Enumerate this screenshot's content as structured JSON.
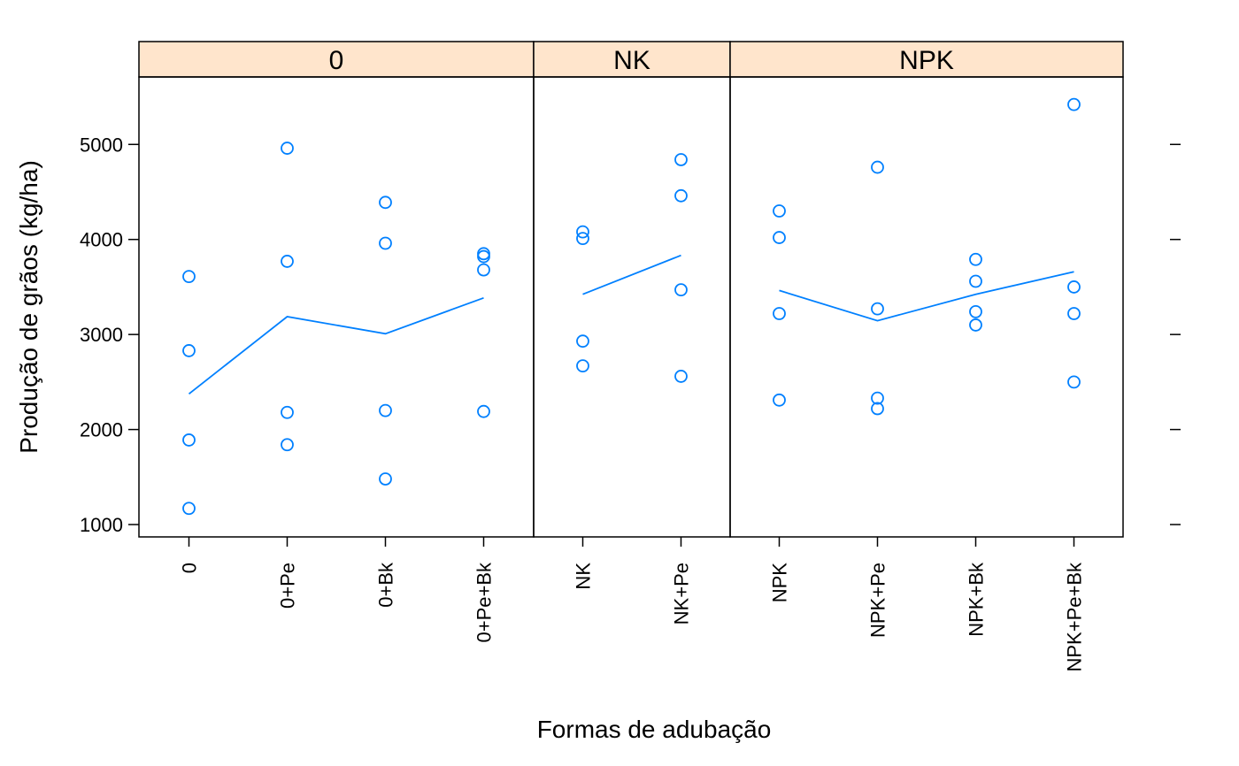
{
  "chart_data": {
    "type": "scatter",
    "xlabel": "Formas de adubação",
    "ylabel": "Produção de grãos (kg/ha)",
    "ylim": [
      870,
      5710
    ],
    "yticks": [
      1000,
      2000,
      3000,
      4000,
      5000
    ],
    "grid": false,
    "point_color": "#0080ff",
    "line_color": "#0080ff",
    "strip_color": "#ffe5cc",
    "panels": [
      {
        "strip": "0",
        "categories": [
          "0",
          "0+Pe",
          "0+Bk",
          "0+Pe+Bk"
        ],
        "points": [
          [
            3610,
            2830,
            1890,
            1170
          ],
          [
            4960,
            3770,
            2180,
            1840
          ],
          [
            4390,
            3960,
            2200,
            1480
          ],
          [
            3850,
            3820,
            3680,
            2190
          ]
        ],
        "means": [
          2375,
          3188,
          3008,
          3385
        ]
      },
      {
        "strip": "NK",
        "categories": [
          "NK",
          "NK+Pe"
        ],
        "points": [
          [
            4080,
            4010,
            2930,
            2670
          ],
          [
            4840,
            4460,
            3470,
            2560
          ]
        ],
        "means": [
          3423,
          3833
        ]
      },
      {
        "strip": "NPK",
        "categories": [
          "NPK",
          "NPK+Pe",
          "NPK+Bk",
          "NPK+Pe+Bk"
        ],
        "points": [
          [
            4300,
            4020,
            3220,
            2310
          ],
          [
            4760,
            3270,
            2330,
            2220
          ],
          [
            3790,
            3560,
            3240,
            3100
          ],
          [
            5420,
            3500,
            3220,
            2500
          ]
        ],
        "means": [
          3463,
          3145,
          3423,
          3660
        ]
      }
    ]
  }
}
